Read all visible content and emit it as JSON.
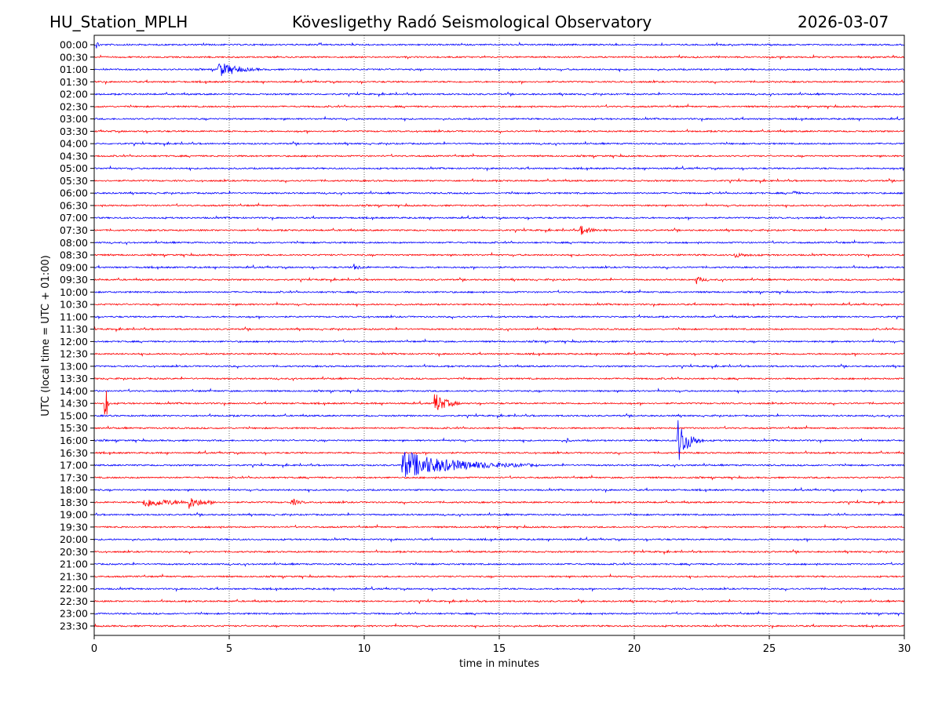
{
  "header": {
    "station": "HU_Station_MPLH",
    "observatory": "Kövesligethy Radó Seismological Observatory",
    "date": "2026-03-07"
  },
  "chart_data": {
    "type": "line",
    "title": "Kövesligethy Radó Seismological Observatory",
    "xlabel": "time in minutes",
    "ylabel": "UTC (local time = UTC + 01:00)",
    "xlim": [
      0,
      30
    ],
    "xticks": [
      0,
      5,
      10,
      15,
      20,
      25,
      30
    ],
    "grid": "vertical dotted at x ticks",
    "row_labels": [
      "00:00",
      "00:30",
      "01:00",
      "01:30",
      "02:00",
      "02:30",
      "03:00",
      "03:30",
      "04:00",
      "04:30",
      "05:00",
      "05:30",
      "06:00",
      "06:30",
      "07:00",
      "07:30",
      "08:00",
      "08:30",
      "09:00",
      "09:30",
      "10:00",
      "10:30",
      "11:00",
      "11:30",
      "12:00",
      "12:30",
      "13:00",
      "13:30",
      "14:00",
      "14:30",
      "15:00",
      "15:30",
      "16:00",
      "16:30",
      "17:00",
      "17:30",
      "18:00",
      "18:30",
      "19:00",
      "19:30",
      "20:00",
      "20:30",
      "21:00",
      "21:30",
      "22:00",
      "22:30",
      "23:00",
      "23:30"
    ],
    "series_colors": [
      "#0000ff",
      "#ff0000"
    ],
    "events": [
      {
        "row": "00:00",
        "t": 0.1,
        "amp": 5,
        "dur": 0.2
      },
      {
        "row": "01:00",
        "t": 4.6,
        "amp": 10,
        "dur": 1.6
      },
      {
        "row": "06:00",
        "t": 25.9,
        "amp": 3,
        "dur": 0.3
      },
      {
        "row": "07:30",
        "t": 18.0,
        "amp": 6,
        "dur": 1.0
      },
      {
        "row": "08:30",
        "t": 23.7,
        "amp": 3,
        "dur": 1.0
      },
      {
        "row": "09:00",
        "t": 9.6,
        "amp": 4,
        "dur": 0.6
      },
      {
        "row": "09:30",
        "t": 22.3,
        "amp": 5,
        "dur": 0.5
      },
      {
        "row": "14:30",
        "t": 0.4,
        "amp": 65,
        "dur": 0.15
      },
      {
        "row": "14:30",
        "t": 12.6,
        "amp": 15,
        "dur": 1.0
      },
      {
        "row": "16:00",
        "t": 17.5,
        "amp": 3,
        "dur": 0.2
      },
      {
        "row": "16:00",
        "t": 21.6,
        "amp": 30,
        "dur": 1.0
      },
      {
        "row": "17:00",
        "t": 11.4,
        "amp": 18,
        "dur": 5.0
      },
      {
        "row": "18:30",
        "t": 1.8,
        "amp": 6,
        "dur": 3.0
      },
      {
        "row": "18:30",
        "t": 3.5,
        "amp": 7,
        "dur": 1.0
      },
      {
        "row": "18:30",
        "t": 7.3,
        "amp": 5,
        "dur": 0.6
      }
    ],
    "noise_amp": 1.5
  }
}
